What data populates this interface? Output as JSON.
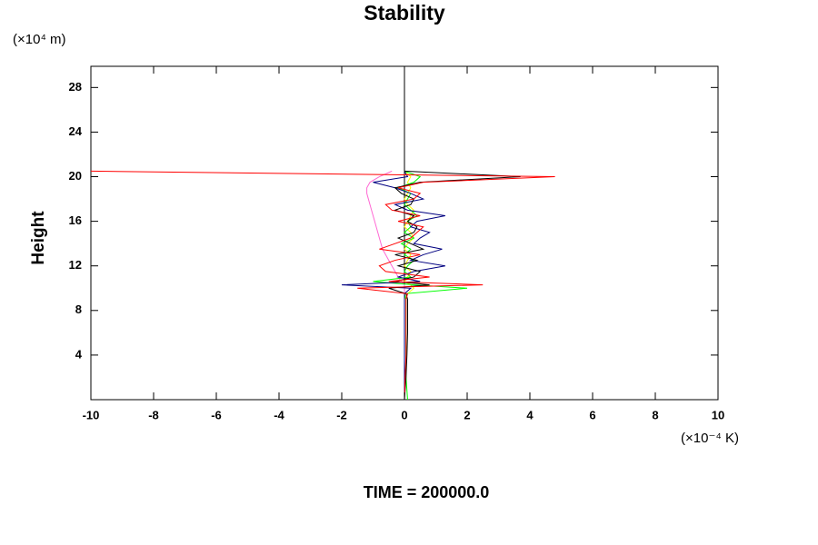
{
  "chart_data": {
    "type": "line",
    "title": "Stability",
    "y_unit": "(×10⁴ m)",
    "x_unit": "(×10⁻⁴ K)",
    "y_label": "Height",
    "footer": "TIME = 200000.0",
    "xlim": [
      -10,
      10
    ],
    "xticks": [
      -10,
      -8,
      -6,
      -4,
      -2,
      0,
      2,
      4,
      6,
      8,
      10
    ],
    "ylim": [
      0,
      29.9
    ],
    "yticks": [
      4,
      8,
      12,
      16,
      20,
      24,
      28
    ],
    "y": [
      0,
      2,
      4,
      6,
      8,
      9,
      9.5,
      10,
      10.3,
      10.6,
      11,
      11.5,
      12,
      12.5,
      13,
      13.5,
      14,
      14.5,
      15,
      15.5,
      16,
      16.5,
      17,
      17.5,
      18,
      18.5,
      19,
      19.5,
      20,
      20.5
    ],
    "series": [
      {
        "color": "#ff69d4",
        "values": [
          0,
          0,
          0,
          0,
          0,
          0,
          0,
          0,
          0,
          -0.1,
          -0.2,
          -0.3,
          -0.4,
          -0.5,
          -0.6,
          -0.7,
          -0.75,
          -0.8,
          -0.85,
          -0.9,
          -0.95,
          -1,
          -1.05,
          -1.1,
          -1.15,
          -1.2,
          -1.2,
          -1.1,
          -0.8,
          -0.4
        ]
      },
      {
        "color": "#ffff00",
        "values": [
          0,
          0,
          0,
          0,
          0,
          0,
          0.1,
          0.3,
          0.2,
          0,
          0.1,
          0.2,
          0,
          0.1,
          0.2,
          0,
          0.1,
          0.3,
          0.2,
          0,
          0.1,
          0.2,
          0.3,
          0.1,
          0,
          0.1,
          0.2,
          0.1,
          0.2,
          0
        ]
      },
      {
        "color": "#00ff00",
        "values": [
          0.1,
          0.05,
          0.05,
          0.05,
          0.05,
          0.05,
          0,
          2,
          0.3,
          -1,
          0.2,
          0,
          0.1,
          0.3,
          0,
          0.2,
          -0.1,
          0.3,
          0,
          0.2,
          0.1,
          0.4,
          0.2,
          0,
          0.1,
          0.2,
          -0.2,
          0.3,
          0.5,
          0
        ]
      },
      {
        "color": "#000080",
        "values": [
          0,
          0,
          0,
          0,
          0,
          0,
          0,
          0.2,
          -2,
          0.5,
          -0.2,
          0.3,
          1.3,
          0.2,
          0.6,
          1.2,
          0.3,
          0.5,
          0.8,
          0.2,
          0.4,
          1.3,
          0.1,
          -0.3,
          0.6,
          0.2,
          -0.3,
          -1,
          0.1,
          0
        ]
      },
      {
        "color": "#000000",
        "values": [
          0,
          0.05,
          0.08,
          0.1,
          0.1,
          0.1,
          0.05,
          -0.5,
          0.8,
          -0.3,
          0.3,
          0.5,
          -0.2,
          0.4,
          -0.3,
          0.6,
          0.2,
          -0.2,
          0.3,
          0.4,
          0.1,
          0.3,
          -0.3,
          0.2,
          0.3,
          -0.1,
          -0.3,
          0.5,
          3.7,
          0
        ]
      },
      {
        "color": "#ff0000",
        "values": [
          0,
          0.02,
          0.05,
          0.05,
          0.05,
          0.05,
          0.1,
          -1.5,
          2.5,
          -0.5,
          0.8,
          -0.6,
          -0.8,
          -0.3,
          0.5,
          -0.8,
          -0.3,
          0.2,
          0.4,
          0.6,
          -0.2,
          0.5,
          -0.4,
          -0.6,
          0.3,
          0.5,
          -0.2,
          0.6,
          4.8,
          -10
        ]
      }
    ]
  }
}
